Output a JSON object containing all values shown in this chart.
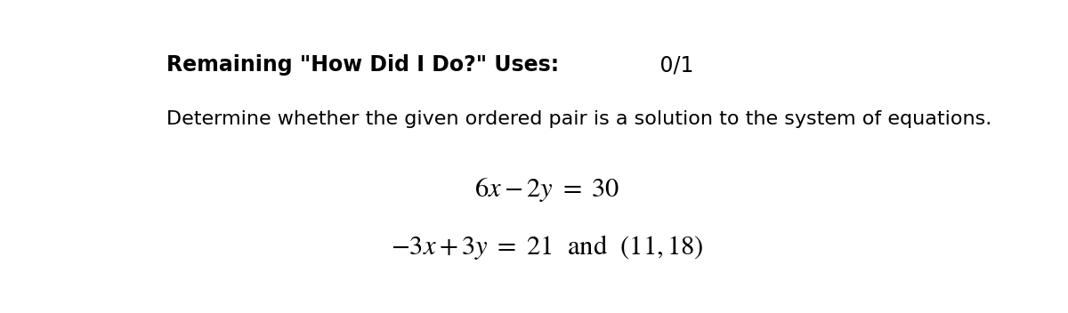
{
  "bg_color": "#ffffff",
  "title_bold": "Remaining \"How Did I Do?\" Uses:",
  "title_normal": " 0/1",
  "subtitle": "Determine whether the given ordered pair is a solution to the system of equations.",
  "fig_width": 12.0,
  "fig_height": 3.52,
  "dpi": 100
}
